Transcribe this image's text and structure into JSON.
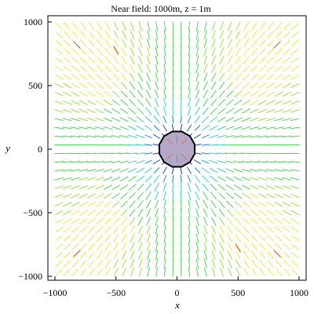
{
  "chart_data": {
    "type": "vector-field",
    "title": "Near field: 1000m, z = 1m",
    "xlabel": "x",
    "ylabel": "y",
    "xlim": [
      -1000,
      1000
    ],
    "ylim": [
      -1000,
      1000
    ],
    "x_ticks": [
      -1000,
      -500,
      0,
      500,
      1000
    ],
    "y_ticks": [
      -1000,
      -500,
      0,
      500,
      1000
    ],
    "x_tick_labels": [
      "−1000",
      "−500",
      "0",
      "500",
      "1000"
    ],
    "y_tick_labels": [
      "−1000",
      "−500",
      "0",
      "500",
      "1000"
    ],
    "grid": false,
    "field": {
      "pattern": "radial",
      "grid_points_per_axis": 30,
      "color_scale": [
        "#1f2f9f",
        "#1e90ff",
        "#34d3c8",
        "#4cd26a",
        "#8fe04a",
        "#e8e84a",
        "#e0452a"
      ]
    },
    "central_disk": {
      "center": [
        0,
        0
      ],
      "radius": 150,
      "fill": "#b3a9c6",
      "stroke": "#000000"
    }
  }
}
